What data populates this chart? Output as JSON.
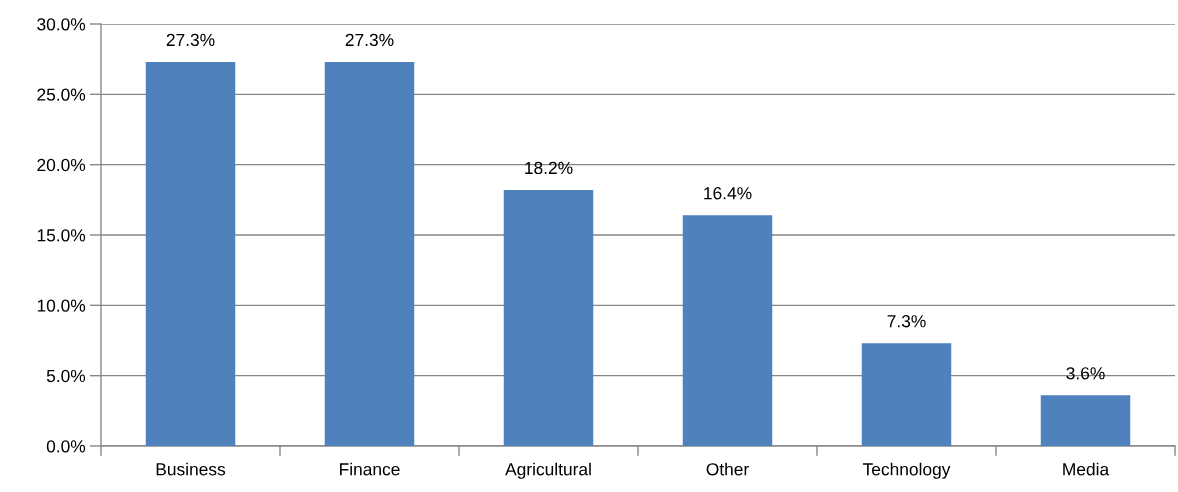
{
  "chart_data": {
    "type": "bar",
    "categories": [
      "Business",
      "Finance",
      "Agricultural",
      "Other",
      "Technology",
      "Media"
    ],
    "values": [
      27.3,
      27.3,
      18.2,
      16.4,
      7.3,
      3.6
    ],
    "value_labels": [
      "27.3%",
      "27.3%",
      "18.2%",
      "16.4%",
      "7.3%",
      "3.6%"
    ],
    "color": "#4f81bd",
    "ylim": [
      0,
      30
    ],
    "yticks": [
      {
        "value": 0,
        "label": "0.0%"
      },
      {
        "value": 5,
        "label": "5.0%"
      },
      {
        "value": 10,
        "label": "10.0%"
      },
      {
        "value": 15,
        "label": "15.0%"
      },
      {
        "value": 20,
        "label": "20.0%"
      },
      {
        "value": 25,
        "label": "25.0%"
      },
      {
        "value": 30,
        "label": "30.0%"
      }
    ],
    "grid": "y",
    "legend": false
  }
}
